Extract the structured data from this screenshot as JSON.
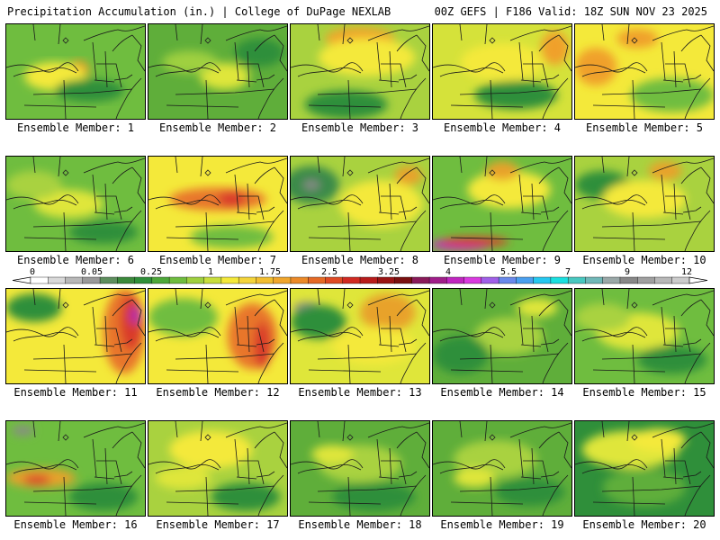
{
  "header": {
    "left": "Precipitation Accumulation (in.) | College of DuPage NEXLAB",
    "right": "00Z GEFS | F186 Valid: 18Z SUN NOV 23 2025"
  },
  "panels": [
    {
      "label": "Ensemble Member: 1",
      "base": "#6fbd3f",
      "blobs": [
        [
          "#e8a22a",
          0.52,
          0.48,
          0.08,
          0.1
        ],
        [
          "#f4e93a",
          0.35,
          0.55,
          0.22,
          0.15
        ],
        [
          "#2f8f3a",
          0.6,
          0.7,
          0.25,
          0.12
        ]
      ]
    },
    {
      "label": "Ensemble Member: 2",
      "base": "#5fae3a",
      "blobs": [
        [
          "#dfe63a",
          0.55,
          0.55,
          0.18,
          0.14
        ],
        [
          "#2f8f3a",
          0.8,
          0.3,
          0.18,
          0.15
        ],
        [
          "#9fd03f",
          0.3,
          0.4,
          0.2,
          0.12
        ]
      ]
    },
    {
      "label": "Ensemble Member: 3",
      "base": "#a9d23f",
      "blobs": [
        [
          "#f0a62c",
          0.5,
          0.15,
          0.25,
          0.12
        ],
        [
          "#f4e93a",
          0.55,
          0.35,
          0.35,
          0.2
        ],
        [
          "#2f8f3a",
          0.4,
          0.85,
          0.3,
          0.15
        ]
      ]
    },
    {
      "label": "Ensemble Member: 4",
      "base": "#d5e23a",
      "blobs": [
        [
          "#f0a02a",
          0.88,
          0.25,
          0.1,
          0.18
        ],
        [
          "#f4e93a",
          0.5,
          0.4,
          0.3,
          0.2
        ],
        [
          "#2f8f3a",
          0.6,
          0.75,
          0.3,
          0.15
        ]
      ]
    },
    {
      "label": "Ensemble Member: 5",
      "base": "#f4e93a",
      "blobs": [
        [
          "#f0a02a",
          0.15,
          0.45,
          0.15,
          0.2
        ],
        [
          "#f0a02a",
          0.45,
          0.15,
          0.15,
          0.1
        ],
        [
          "#6fbd3f",
          0.7,
          0.75,
          0.3,
          0.18
        ]
      ]
    },
    {
      "label": "Ensemble Member: 6",
      "base": "#6fbd3f",
      "blobs": [
        [
          "#dfe63a",
          0.45,
          0.5,
          0.25,
          0.15
        ],
        [
          "#2f8f3a",
          0.7,
          0.8,
          0.25,
          0.12
        ],
        [
          "#a9d23f",
          0.2,
          0.3,
          0.2,
          0.15
        ]
      ]
    },
    {
      "label": "Ensemble Member: 7",
      "base": "#f4e93a",
      "blobs": [
        [
          "#e8762a",
          0.5,
          0.45,
          0.35,
          0.12
        ],
        [
          "#d93a2a",
          0.6,
          0.45,
          0.1,
          0.08
        ],
        [
          "#6fbd3f",
          0.6,
          0.85,
          0.3,
          0.12
        ]
      ]
    },
    {
      "label": "Ensemble Member: 8",
      "base": "#a9d23f",
      "blobs": [
        [
          "#3a8a4a",
          0.15,
          0.3,
          0.2,
          0.2
        ],
        [
          "#8a8a8a",
          0.15,
          0.3,
          0.06,
          0.05
        ],
        [
          "#f4e93a",
          0.65,
          0.5,
          0.3,
          0.25
        ],
        [
          "#e8a22a",
          0.85,
          0.2,
          0.1,
          0.1
        ]
      ]
    },
    {
      "label": "Ensemble Member: 9",
      "base": "#6fbd3f",
      "blobs": [
        [
          "#f4e93a",
          0.55,
          0.35,
          0.3,
          0.2
        ],
        [
          "#e8a22a",
          0.5,
          0.15,
          0.12,
          0.1
        ],
        [
          "#cc22cc",
          0.2,
          0.93,
          0.22,
          0.06
        ],
        [
          "#d93a2a",
          0.3,
          0.9,
          0.25,
          0.05
        ]
      ]
    },
    {
      "label": "Ensemble Member: 10",
      "base": "#a9d23f",
      "blobs": [
        [
          "#8a8a8a",
          0.15,
          0.25,
          0.08,
          0.06
        ],
        [
          "#2f8f3a",
          0.2,
          0.3,
          0.2,
          0.15
        ],
        [
          "#f4e93a",
          0.5,
          0.45,
          0.3,
          0.2
        ],
        [
          "#e8a22a",
          0.65,
          0.15,
          0.12,
          0.1
        ]
      ]
    },
    {
      "label": "Ensemble Member: 11",
      "base": "#f4e93a",
      "blobs": [
        [
          "#e8762a",
          0.85,
          0.45,
          0.15,
          0.45
        ],
        [
          "#d93a2a",
          0.9,
          0.35,
          0.08,
          0.3
        ],
        [
          "#b52aa8",
          0.93,
          0.28,
          0.04,
          0.1
        ],
        [
          "#2f8f3a",
          0.2,
          0.2,
          0.2,
          0.15
        ]
      ]
    },
    {
      "label": "Ensemble Member: 12",
      "base": "#f4e93a",
      "blobs": [
        [
          "#e8762a",
          0.75,
          0.5,
          0.18,
          0.35
        ],
        [
          "#d93a2a",
          0.82,
          0.6,
          0.06,
          0.25
        ],
        [
          "#6fbd3f",
          0.25,
          0.3,
          0.25,
          0.2
        ]
      ]
    },
    {
      "label": "Ensemble Member: 13",
      "base": "#dfe63a",
      "blobs": [
        [
          "#8a8a8a",
          0.12,
          0.2,
          0.1,
          0.06
        ],
        [
          "#2f8f3a",
          0.2,
          0.35,
          0.2,
          0.18
        ],
        [
          "#e8a22a",
          0.7,
          0.25,
          0.2,
          0.2
        ],
        [
          "#f4e93a",
          0.6,
          0.6,
          0.3,
          0.2
        ]
      ]
    },
    {
      "label": "Ensemble Member: 14",
      "base": "#5fae3a",
      "blobs": [
        [
          "#a9d23f",
          0.55,
          0.5,
          0.25,
          0.2
        ],
        [
          "#2f8f3a",
          0.2,
          0.7,
          0.2,
          0.2
        ],
        [
          "#dfe63a",
          0.75,
          0.2,
          0.15,
          0.1
        ]
      ]
    },
    {
      "label": "Ensemble Member: 15",
      "base": "#6fbd3f",
      "blobs": [
        [
          "#dfe63a",
          0.45,
          0.45,
          0.3,
          0.2
        ],
        [
          "#2f8f3a",
          0.7,
          0.75,
          0.25,
          0.15
        ],
        [
          "#a9d23f",
          0.2,
          0.3,
          0.2,
          0.15
        ]
      ]
    },
    {
      "label": "Ensemble Member: 16",
      "base": "#6fbd3f",
      "blobs": [
        [
          "#e8a22a",
          0.25,
          0.6,
          0.25,
          0.1
        ],
        [
          "#d93a2a",
          0.22,
          0.62,
          0.1,
          0.05
        ],
        [
          "#8a8a8a",
          0.12,
          0.1,
          0.08,
          0.05
        ],
        [
          "#2f8f3a",
          0.7,
          0.8,
          0.25,
          0.15
        ]
      ]
    },
    {
      "label": "Ensemble Member: 17",
      "base": "#a9d23f",
      "blobs": [
        [
          "#f4e93a",
          0.45,
          0.3,
          0.3,
          0.2
        ],
        [
          "#2f8f3a",
          0.7,
          0.8,
          0.25,
          0.15
        ],
        [
          "#dfe63a",
          0.25,
          0.6,
          0.2,
          0.12
        ]
      ]
    },
    {
      "label": "Ensemble Member: 18",
      "base": "#5fae3a",
      "blobs": [
        [
          "#a9d23f",
          0.5,
          0.45,
          0.3,
          0.2
        ],
        [
          "#2f8f3a",
          0.6,
          0.8,
          0.3,
          0.15
        ],
        [
          "#dfe63a",
          0.3,
          0.35,
          0.15,
          0.1
        ]
      ]
    },
    {
      "label": "Ensemble Member: 19",
      "base": "#5fae3a",
      "blobs": [
        [
          "#a9d23f",
          0.45,
          0.4,
          0.3,
          0.2
        ],
        [
          "#2f8f3a",
          0.7,
          0.75,
          0.25,
          0.15
        ],
        [
          "#dfe63a",
          0.3,
          0.6,
          0.15,
          0.1
        ]
      ]
    },
    {
      "label": "Ensemble Member: 20",
      "base": "#2f8f3a",
      "blobs": [
        [
          "#dfe63a",
          0.4,
          0.3,
          0.35,
          0.2
        ],
        [
          "#f4e93a",
          0.6,
          0.2,
          0.2,
          0.12
        ],
        [
          "#5fae3a",
          0.5,
          0.7,
          0.3,
          0.2
        ]
      ]
    }
  ],
  "colorbar": {
    "colors": [
      "#ffffff",
      "#d9d9d9",
      "#b8b8b8",
      "#9a9a9a",
      "#5e8f5e",
      "#3c8a3c",
      "#2f8f3a",
      "#4ea83a",
      "#6fbd3f",
      "#9fd03f",
      "#c8de3c",
      "#f4e93a",
      "#f4d43a",
      "#f2be30",
      "#f0a62c",
      "#ec8a28",
      "#e66a26",
      "#df4a24",
      "#d12a22",
      "#b81c1c",
      "#9a1414",
      "#7a1010",
      "#8a1a5a",
      "#a01e8a",
      "#c026c0",
      "#d93ae0",
      "#a060e8",
      "#6a8aec",
      "#4aa0f0",
      "#26c8f0",
      "#1ae0e0",
      "#48c8c0",
      "#70b8b8",
      "#9aa8a8",
      "#888888",
      "#a0a0a0",
      "#b8b8b8",
      "#cccccc"
    ],
    "ticks": [
      "0",
      "0.05",
      "0.25",
      "1",
      "1.75",
      "2.5",
      "3.25",
      "4",
      "5.5",
      "7",
      "9",
      "12"
    ]
  }
}
